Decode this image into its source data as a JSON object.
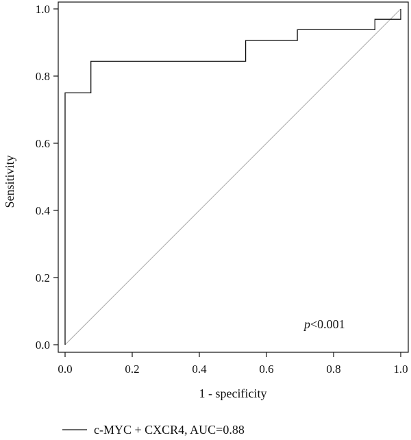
{
  "chart_data": {
    "type": "line",
    "xlabel": "1 - specificity",
    "ylabel": "Sensitivity",
    "xlim": [
      0.0,
      1.0
    ],
    "ylim": [
      0.0,
      1.0
    ],
    "x_ticks": [
      "0.0",
      "0.2",
      "0.4",
      "0.6",
      "0.8",
      "1.0"
    ],
    "y_ticks": [
      "0.0",
      "0.2",
      "0.4",
      "0.6",
      "0.8",
      "1.0"
    ],
    "annotation": {
      "italic": "p",
      "rest": "<0.001"
    },
    "series": [
      {
        "name": "c-MYC + CXCR4, AUC=0.88",
        "color": "#111111",
        "x": [
          0.0,
          0.0,
          0.077,
          0.077,
          0.538,
          0.538,
          0.692,
          0.692,
          0.923,
          0.923,
          1.0,
          1.0
        ],
        "y": [
          0.0,
          0.75,
          0.75,
          0.844,
          0.844,
          0.906,
          0.906,
          0.938,
          0.938,
          0.969,
          0.969,
          1.0
        ]
      }
    ],
    "reference_line": {
      "x": [
        0.0,
        1.0
      ],
      "y": [
        0.0,
        1.0
      ],
      "color": "#aaaaaa"
    },
    "grid": false,
    "legend_position": "bottom-left"
  }
}
